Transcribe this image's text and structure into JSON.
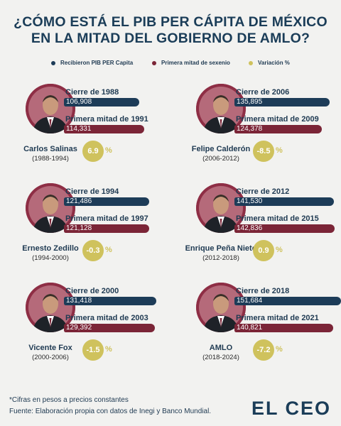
{
  "title": {
    "line1": "¿CÓMO ESTÁ EL PIB PER CÁPITA DE MÉXICO",
    "line2": "EN LA MITAD DEL GOBIERNO DE AMLO?"
  },
  "legend": [
    {
      "label": "Recibieron PIB PER Capita",
      "color": "#1d3c58"
    },
    {
      "label": "Primera mitad de sexenio",
      "color": "#7b2537"
    },
    {
      "label": "Variación %",
      "color": "#cfc25d"
    }
  ],
  "colors": {
    "blue": "#1d3c58",
    "red": "#7b2537",
    "gold": "#cfc25d",
    "background": "#f2f2f0"
  },
  "chart_data": {
    "type": "bar",
    "title": "¿CÓMO ESTÁ EL PIB PER CÁPITA DE MÉXICO EN LA MITAD DEL GOBIERNO DE AMLO?",
    "series": [
      {
        "name": "Recibieron PIB PER Capita",
        "values": [
          106908,
          121486,
          131418,
          135895,
          141530,
          151684
        ]
      },
      {
        "name": "Primera mitad de sexenio",
        "values": [
          114331,
          121128,
          129392,
          124378,
          142836,
          140821
        ]
      }
    ],
    "categories": [
      "Carlos Salinas",
      "Ernesto Zedillo",
      "Vicente Fox",
      "Felipe Calderón",
      "Enrique Peña Nieto",
      "AMLO"
    ],
    "variation_pct": [
      6.9,
      -0.3,
      -1.5,
      -8.5,
      0.9,
      -7.2
    ],
    "scale_max": 152000,
    "presidents": [
      {
        "name": "Carlos Salinas",
        "years": "(1988-1994)",
        "close_label": "Cierre de 1988",
        "close_value": 106908,
        "close_text": "106,908",
        "mid_label": "Primera mitad de 1991",
        "mid_value": 114331,
        "mid_text": "114,331",
        "variation": 6.9,
        "variation_text": "6.9",
        "pct_sign": "%"
      },
      {
        "name": "Felipe Calderón",
        "years": "(2006-2012)",
        "close_label": "Cierre de 2006",
        "close_value": 135895,
        "close_text": "135,895",
        "mid_label": "Primera mitad de 2009",
        "mid_value": 124378,
        "mid_text": "124,378",
        "variation": -8.5,
        "variation_text": "-8.5",
        "pct_sign": "%"
      },
      {
        "name": "Ernesto Zedillo",
        "years": "(1994-2000)",
        "close_label": "Cierre de 1994",
        "close_value": 121486,
        "close_text": "121,486",
        "mid_label": "Primera mitad de 1997",
        "mid_value": 121128,
        "mid_text": "121,128",
        "variation": -0.3,
        "variation_text": "-0.3",
        "pct_sign": "%"
      },
      {
        "name": "Enrique Peña Nieto",
        "years": "(2012-2018)",
        "close_label": "Cierre de 2012",
        "close_value": 141530,
        "close_text": "141,530",
        "mid_label": "Primera mitad de 2015",
        "mid_value": 142836,
        "mid_text": "142,836",
        "variation": 0.9,
        "variation_text": "0.9",
        "pct_sign": "%"
      },
      {
        "name": "Vicente Fox",
        "years": "(2000-2006)",
        "close_label": "Cierre de 2000",
        "close_value": 131418,
        "close_text": "131,418",
        "mid_label": "Primera mitad de 2003",
        "mid_value": 129392,
        "mid_text": "129,392",
        "variation": -1.5,
        "variation_text": "-1.5",
        "pct_sign": "%"
      },
      {
        "name": "AMLO",
        "years": "(2018-2024)",
        "close_label": "Cierre de 2018",
        "close_value": 151684,
        "close_text": "151,684",
        "mid_label": "Primera mitad de 2021",
        "mid_value": 140821,
        "mid_text": "140,821",
        "variation": -7.2,
        "variation_text": "-7.2",
        "pct_sign": "%"
      }
    ]
  },
  "footer": {
    "note": "*Cifras en pesos a precios constantes",
    "source": "Fuente: Elaboración propia con datos de Inegi y Banco Mundial.",
    "brand": "EL CEO"
  }
}
